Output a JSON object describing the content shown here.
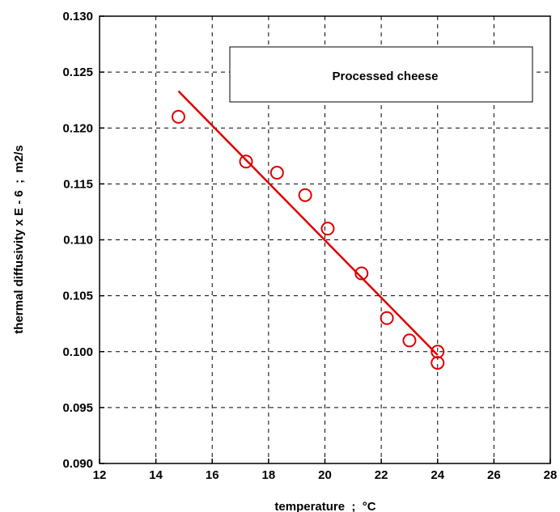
{
  "chart_data": {
    "type": "scatter",
    "xlabel": "temperature  ;  °C",
    "ylabel": "thermal diffusivity x E - 6  ;  m2/s",
    "xlim": [
      12,
      28
    ],
    "ylim": [
      0.09,
      0.13
    ],
    "x_ticks": [
      12,
      14,
      16,
      18,
      20,
      22,
      24,
      26,
      28
    ],
    "x_tick_labels": [
      "12",
      "14",
      "16",
      "18",
      "20",
      "22",
      "24",
      "26",
      "28"
    ],
    "y_ticks": [
      0.09,
      0.095,
      0.1,
      0.105,
      0.11,
      0.115,
      0.12,
      0.125,
      0.13
    ],
    "y_tick_labels": [
      "0.090",
      "0.095",
      "0.100",
      "0.105",
      "0.110",
      "0.115",
      "0.120",
      "0.125",
      "0.130"
    ],
    "grid": true,
    "legend_placement": "top-right",
    "series": [
      {
        "name": "Processed cheese",
        "marker": "open-circle",
        "color": "#e00000",
        "points": [
          {
            "x": 14.8,
            "y": 0.121
          },
          {
            "x": 17.2,
            "y": 0.117
          },
          {
            "x": 18.3,
            "y": 0.116
          },
          {
            "x": 19.3,
            "y": 0.114
          },
          {
            "x": 20.1,
            "y": 0.111
          },
          {
            "x": 21.3,
            "y": 0.107
          },
          {
            "x": 22.2,
            "y": 0.103
          },
          {
            "x": 23.0,
            "y": 0.101
          },
          {
            "x": 24.0,
            "y": 0.1
          },
          {
            "x": 24.0,
            "y": 0.099
          }
        ]
      }
    ],
    "fit_line": {
      "color": "#e00000",
      "points": [
        {
          "x": 14.8,
          "y": 0.1233
        },
        {
          "x": 24.0,
          "y": 0.0997
        }
      ]
    }
  }
}
